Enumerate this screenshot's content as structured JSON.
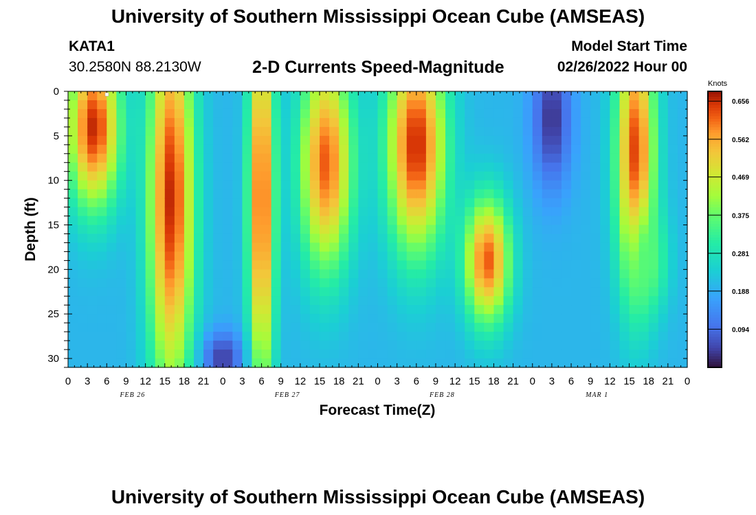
{
  "titles": {
    "top": "University of Southern Mississippi Ocean Cube (AMSEAS)",
    "bottom": "University of Southern Mississippi Ocean Cube (AMSEAS)"
  },
  "header": {
    "station_id": "KATA1",
    "coords": "30.2580N  88.2130W",
    "plot_title": "2-D Currents Speed-Magnitude",
    "start_label": "Model Start Time",
    "start_value": "02/26/2022 Hour 00"
  },
  "chart_data": {
    "type": "heatmap",
    "title": "2-D Currents Speed-Magnitude",
    "xlabel": "Forecast Time(Z)",
    "ylabel": "Depth (ft)",
    "x_range_hours": [
      0,
      96
    ],
    "y_range_ft": [
      0,
      31
    ],
    "x_tick_labels": [
      "0",
      "3",
      "6",
      "9",
      "12",
      "15",
      "18",
      "21",
      "0",
      "3",
      "6",
      "9",
      "12",
      "15",
      "18",
      "21",
      "0",
      "3",
      "6",
      "9",
      "12",
      "15",
      "18",
      "21",
      "0",
      "3",
      "6",
      "9",
      "12",
      "15",
      "18",
      "21",
      "0"
    ],
    "y_ticks": [
      0,
      5,
      10,
      15,
      20,
      25,
      30
    ],
    "date_labels": [
      {
        "label": "FEB 26",
        "hour": 10
      },
      {
        "label": "FEB 27",
        "hour": 34
      },
      {
        "label": "FEB 28",
        "hour": 58
      },
      {
        "label": "MAR 1",
        "hour": 82
      }
    ],
    "colorbar": {
      "unit": "Knots",
      "min": 0.0,
      "max": 0.68,
      "ticks": [
        0.656,
        0.562,
        0.469,
        0.375,
        0.281,
        0.188,
        0.094
      ],
      "tick_labels": [
        "0.656",
        "0.562",
        "0.469",
        "0.375",
        "0.281",
        "0.188",
        "0.094"
      ]
    },
    "speed_features_knots": [
      {
        "hour": 4,
        "depth": 4,
        "speed": 0.66,
        "hw": 4.0,
        "dh": 9
      },
      {
        "hour": 16,
        "depth": 12,
        "speed": 0.66,
        "hw": 3.5,
        "dh": 22
      },
      {
        "hour": 30,
        "depth": 12,
        "speed": 0.64,
        "hw": 2.0,
        "dh": 22
      },
      {
        "hour": 40,
        "depth": 8,
        "speed": 0.62,
        "hw": 4.0,
        "dh": 12
      },
      {
        "hour": 54,
        "depth": 6,
        "speed": 0.66,
        "hw": 4.5,
        "dh": 12
      },
      {
        "hour": 65,
        "depth": 19,
        "speed": 0.62,
        "hw": 3.5,
        "dh": 7
      },
      {
        "hour": 88,
        "depth": 7,
        "speed": 0.64,
        "hw": 3.0,
        "dh": 15
      },
      {
        "hour": 90,
        "depth": 19,
        "speed": 0.36,
        "hw": 3.0,
        "dh": 6
      },
      {
        "hour": 75,
        "depth": 3,
        "speed": 0.03,
        "hw": 3.0,
        "dh": 8
      },
      {
        "hour": 24,
        "depth": 30,
        "speed": 0.04,
        "hw": 3.0,
        "dh": 3
      }
    ]
  }
}
